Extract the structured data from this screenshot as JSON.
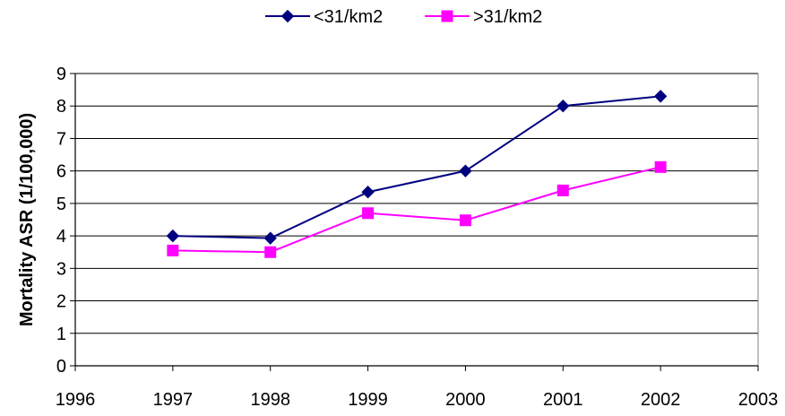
{
  "chart_data": {
    "type": "line",
    "title": "",
    "xlabel": "",
    "ylabel": "Mortality ASR (1/100,000)",
    "x": [
      1997,
      1998,
      1999,
      2000,
      2001,
      2002
    ],
    "xlim": [
      1996,
      2003
    ],
    "ylim": [
      0,
      9
    ],
    "x_ticks": [
      "1996",
      "1997",
      "1998",
      "1999",
      "2000",
      "2001",
      "2002",
      "2003"
    ],
    "y_ticks": [
      "0",
      "1",
      "2",
      "3",
      "4",
      "5",
      "6",
      "7",
      "8",
      "9"
    ],
    "grid": "horizontal",
    "legend_position": "top",
    "series": [
      {
        "name": "<31/km2",
        "color": "#000080",
        "marker": "diamond",
        "values": [
          4.0,
          3.93,
          5.35,
          6.0,
          8.0,
          8.3
        ]
      },
      {
        "name": ">31/km2",
        "color": "#FF00FF",
        "marker": "square",
        "values": [
          3.55,
          3.5,
          4.7,
          4.48,
          5.4,
          6.12
        ]
      }
    ]
  }
}
